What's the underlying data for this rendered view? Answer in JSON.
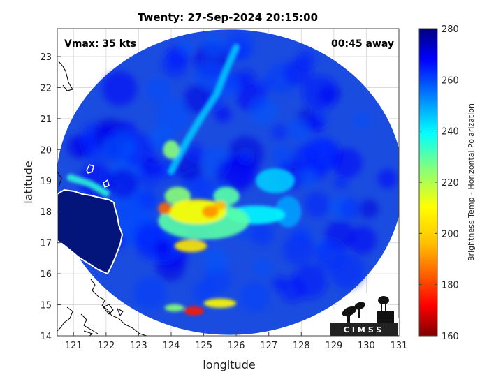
{
  "title": "Twenty: 27-Sep-2024 20:15:00",
  "annotations": {
    "vmax": "Vmax: 35 kts",
    "time_away": "00:45 away"
  },
  "logo_text": "CIMSS",
  "chart_data": {
    "type": "heatmap",
    "xlabel": "longitude",
    "ylabel": "latitude",
    "xlim": [
      120.5,
      131
    ],
    "ylim": [
      14,
      23.9
    ],
    "xticks": [
      "121",
      "122",
      "123",
      "124",
      "125",
      "126",
      "127",
      "128",
      "129",
      "130",
      "131"
    ],
    "yticks": [
      "14",
      "15",
      "16",
      "17",
      "18",
      "19",
      "20",
      "21",
      "22",
      "23"
    ],
    "grid": true,
    "colorbar": {
      "label": "Brightness Temp - Horizontal Polarization",
      "min": 160,
      "max": 280,
      "ticks": [
        "160",
        "180",
        "200",
        "220",
        "240",
        "260",
        "280"
      ]
    },
    "swath": {
      "center_lon": 125.8,
      "center_lat": 18.95,
      "radius_lon": 5.33,
      "radius_lat": 4.92
    },
    "features": [
      {
        "lon": 125.0,
        "lat": 17.7,
        "rx": 1.4,
        "ry": 0.6,
        "temp": 230
      },
      {
        "lon": 124.8,
        "lat": 18.0,
        "rx": 0.9,
        "ry": 0.4,
        "temp": 210
      },
      {
        "lon": 123.8,
        "lat": 18.1,
        "rx": 0.2,
        "ry": 0.2,
        "temp": 185
      },
      {
        "lon": 125.2,
        "lat": 18.0,
        "rx": 0.25,
        "ry": 0.2,
        "temp": 190
      },
      {
        "lon": 125.5,
        "lat": 18.2,
        "rx": 0.2,
        "ry": 0.15,
        "temp": 195
      },
      {
        "lon": 124.6,
        "lat": 16.9,
        "rx": 0.5,
        "ry": 0.2,
        "temp": 205
      },
      {
        "lon": 124.2,
        "lat": 18.5,
        "rx": 0.4,
        "ry": 0.3,
        "temp": 225
      },
      {
        "lon": 125.7,
        "lat": 18.5,
        "rx": 0.4,
        "ry": 0.3,
        "temp": 230
      },
      {
        "lon": 126.6,
        "lat": 17.9,
        "rx": 0.9,
        "ry": 0.3,
        "temp": 240
      },
      {
        "lon": 124.0,
        "lat": 20.0,
        "rx": 0.25,
        "ry": 0.3,
        "temp": 225
      },
      {
        "lon": 124.7,
        "lat": 14.8,
        "rx": 0.3,
        "ry": 0.15,
        "temp": 175
      },
      {
        "lon": 125.5,
        "lat": 15.05,
        "rx": 0.5,
        "ry": 0.15,
        "temp": 210
      },
      {
        "lon": 124.1,
        "lat": 14.9,
        "rx": 0.3,
        "ry": 0.12,
        "temp": 225
      },
      {
        "lon": 127.2,
        "lat": 19.0,
        "rx": 0.6,
        "ry": 0.4,
        "temp": 245
      },
      {
        "lon": 127.6,
        "lat": 18.0,
        "rx": 0.4,
        "ry": 0.5,
        "temp": 250
      }
    ],
    "bands": [
      {
        "points": [
          [
            124.0,
            19.3
          ],
          [
            124.5,
            20.3
          ],
          [
            124.9,
            21.0
          ],
          [
            125.4,
            21.8
          ],
          [
            125.7,
            22.6
          ],
          [
            126.0,
            23.3
          ]
        ],
        "temp": 245
      },
      {
        "points": [
          [
            120.9,
            19.1
          ],
          [
            121.5,
            18.9
          ],
          [
            122.0,
            18.6
          ]
        ],
        "temp": 235
      }
    ]
  }
}
